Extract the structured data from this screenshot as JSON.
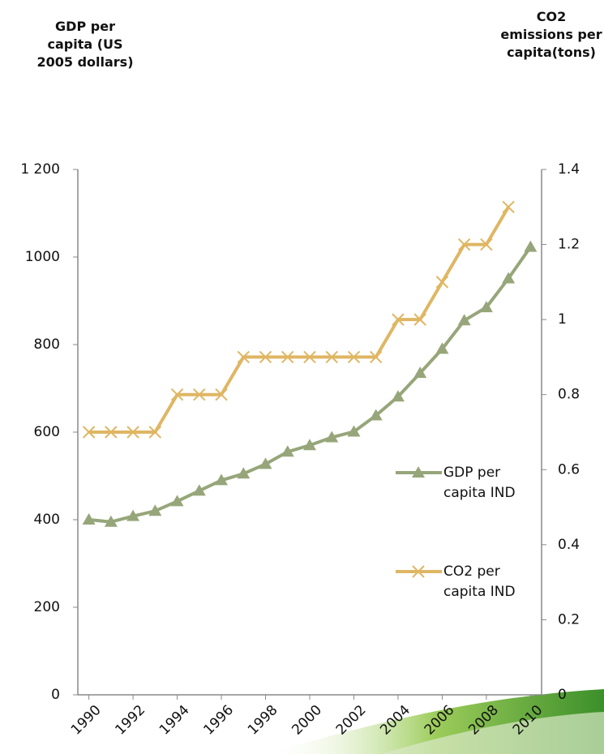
{
  "chart_data": {
    "type": "line",
    "y_label": "GDP per capita (US 2005 dollars)",
    "y2_label": "CO2 emissions per capita(tons)",
    "x": [
      1990,
      1991,
      1992,
      1993,
      1994,
      1995,
      1996,
      1997,
      1998,
      1999,
      2000,
      2001,
      2002,
      2003,
      2004,
      2005,
      2006,
      2007,
      2008,
      2009,
      2010
    ],
    "xlim": [
      1989.5,
      2010.5
    ],
    "xticks": [
      1990,
      1992,
      1994,
      1996,
      1998,
      2000,
      2002,
      2004,
      2006,
      2008,
      2010
    ],
    "ylim": [
      0,
      1200
    ],
    "yticks": [
      0,
      200,
      400,
      600,
      800,
      1000,
      {
        "value": 1200,
        "label": "1 200"
      }
    ],
    "y2lim": [
      0,
      1.4
    ],
    "y2ticks": [
      0,
      0.2,
      0.4,
      0.6,
      0.8,
      1,
      1.2,
      1.4
    ],
    "legend": "right",
    "series": [
      {
        "name": "GDP per capita IND",
        "color": "#97a67a",
        "marker": "triangle",
        "values": [
          400,
          395,
          408,
          420,
          442,
          466,
          490,
          505,
          527,
          555,
          570,
          588,
          601,
          638,
          681,
          735,
          790,
          855,
          885,
          951,
          1023
        ]
      },
      {
        "name": "CO2 per capita IND",
        "color": "#dfb663",
        "marker": "x",
        "axis": "y2",
        "values": [
          0.7,
          0.7,
          0.7,
          0.7,
          0.8,
          0.8,
          0.8,
          0.9,
          0.9,
          0.9,
          0.9,
          0.9,
          0.9,
          0.9,
          1.0,
          1.0,
          1.1,
          1.2,
          1.2,
          1.3,
          null
        ]
      }
    ]
  }
}
